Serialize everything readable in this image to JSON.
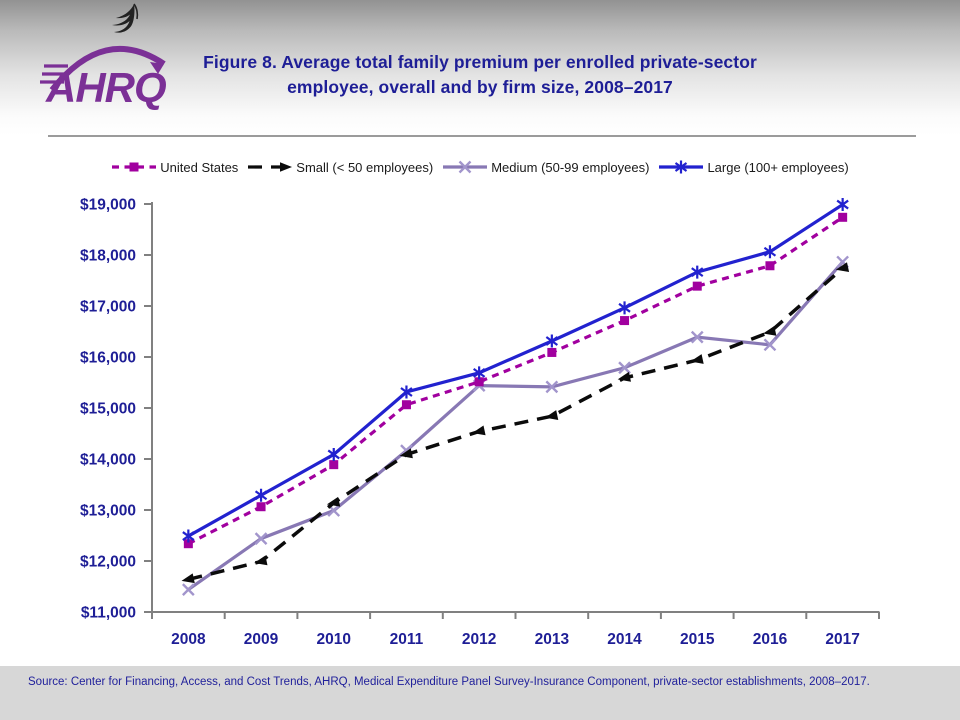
{
  "header": {
    "logo_text": "AHRQ",
    "title_line1": "Figure 8. Average total family premium per enrolled private-sector",
    "title_line2": "employee, overall and by firm size, 2008–2017"
  },
  "chart_data": {
    "type": "line",
    "title": "Figure 8. Average total family premium per enrolled private-sector employee, overall and by firm size, 2008–2017",
    "xlabel": "",
    "ylabel": "",
    "x": [
      2008,
      2009,
      2010,
      2011,
      2012,
      2013,
      2014,
      2015,
      2016,
      2017
    ],
    "ylim": [
      11000,
      19000
    ],
    "ytick_step": 1000,
    "ytick_labels": [
      "$11,000",
      "$12,000",
      "$13,000",
      "$14,000",
      "$15,000",
      "$16,000",
      "$17,000",
      "$18,000",
      "$19,000"
    ],
    "grid": false,
    "legend_position": "top",
    "series": [
      {
        "name": "United States",
        "color": "#a1009f",
        "marker": "square",
        "marker_color": "#a1009f",
        "line_style": "short-dash",
        "values": [
          12300,
          13025,
          13850,
          15025,
          15475,
          16050,
          16675,
          17350,
          17750,
          18700
        ]
      },
      {
        "name": "Small (< 50 employees)",
        "color": "#0b0b0b",
        "marker": "triangle",
        "marker_color": "#0b0b0b",
        "line_style": "long-dash",
        "values": [
          11600,
          11950,
          13100,
          14050,
          14500,
          14800,
          15550,
          15900,
          16450,
          17700
        ]
      },
      {
        "name": "Medium (50-99 employees)",
        "color": "#8878b4",
        "marker": "x",
        "marker_color": "#a295cc",
        "line_style": "solid",
        "values": [
          11400,
          12400,
          12950,
          14125,
          15400,
          15375,
          15750,
          16350,
          16200,
          17825
        ]
      },
      {
        "name": "Large (100+ employees)",
        "color": "#2222cf",
        "marker": "asterisk",
        "marker_color": "#2222cf",
        "line_style": "solid",
        "values": [
          12450,
          13250,
          14050,
          15275,
          15650,
          16275,
          16925,
          17625,
          18025,
          18950
        ]
      }
    ]
  },
  "axis_colors": {
    "axis_line": "#808080",
    "tick_label": "#1e1e96"
  },
  "source": {
    "text": "Source: Center for Financing, Access, and Cost Trends, AHRQ, Medical Expenditure Panel Survey-Insurance Component, private-sector establishments, 2008–2017."
  }
}
